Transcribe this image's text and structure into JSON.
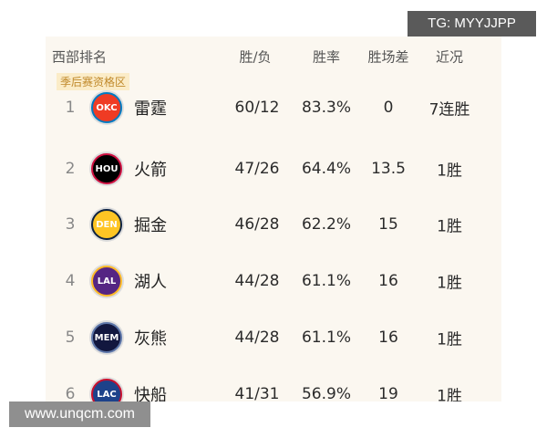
{
  "header": {
    "columns": [
      "西部排名",
      "胜/负",
      "胜率",
      "胜场差",
      "近况"
    ]
  },
  "badge": "季后赛资格区",
  "rows": [
    [
      "1",
      "OKC",
      "雷霆",
      "60/12",
      "83.3%",
      "0",
      "7连胜"
    ],
    [
      "2",
      "HOU",
      "火箭",
      "47/26",
      "64.4%",
      "13.5",
      "1胜"
    ],
    [
      "3",
      "DEN",
      "掘金",
      "46/28",
      "62.2%",
      "15",
      "1胜"
    ],
    [
      "4",
      "LAL",
      "湖人",
      "44/28",
      "61.1%",
      "16",
      "1胜"
    ],
    [
      "5",
      "MEM",
      "灰熊",
      "44/28",
      "61.1%",
      "16",
      "1胜"
    ],
    [
      "6",
      "LAC",
      "快船",
      "41/31",
      "56.9%",
      "19",
      "1胜"
    ]
  ],
  "overlays": {
    "tg": "TG: MYYJJPP",
    "site": "www.unqcm.com"
  }
}
